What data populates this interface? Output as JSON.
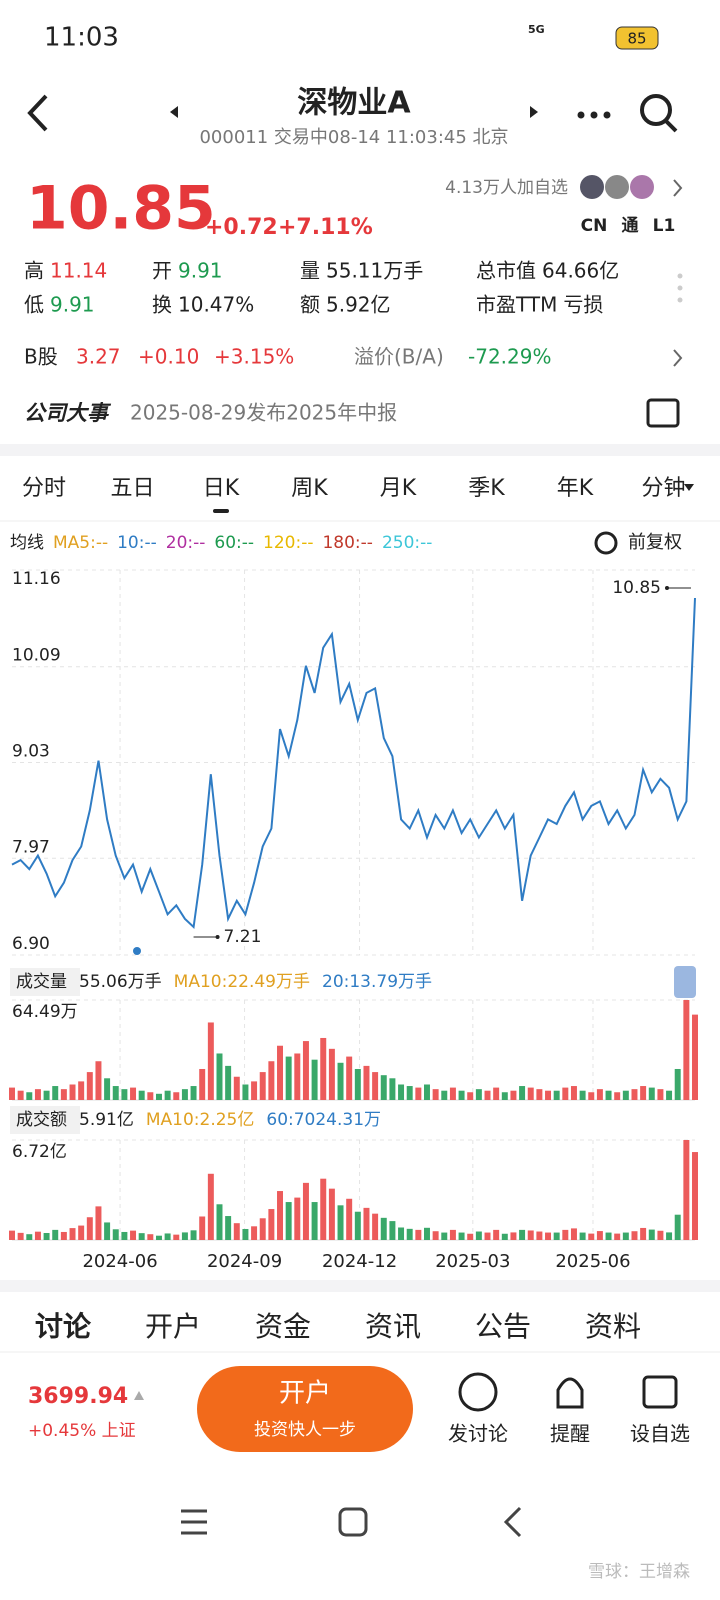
{
  "status_bar": {
    "time": "11:03",
    "network": "5G",
    "battery": "85"
  },
  "header": {
    "title": "深物业A",
    "subtitle": "000011 交易中08-14 11:03:45 北京"
  },
  "quote": {
    "price": "10.85",
    "change": "+0.72",
    "change_pct": "+7.11%",
    "followers": "4.13万人加自选",
    "badges": [
      "CN",
      "通",
      "L1"
    ],
    "stats": [
      [
        {
          "label": "高",
          "value": "11.14"
        },
        {
          "label": "开",
          "value": "9.91"
        },
        {
          "label": "量",
          "value": "55.11万手"
        },
        {
          "label": "总市值",
          "value": "64.66亿"
        }
      ],
      [
        {
          "label": "低",
          "value": "9.91"
        },
        {
          "label": "换",
          "value": "10.47%"
        },
        {
          "label": "额",
          "value": "5.92亿"
        },
        {
          "label": "市盈TTM",
          "value": "亏损"
        }
      ]
    ],
    "b_share": {
      "label": "B股",
      "price": "3.27",
      "change": "+0.10",
      "change_pct": "+3.15%",
      "premium_label": "溢价(B/A)",
      "premium": "-72.29%"
    },
    "event": {
      "label": "公司大事",
      "text": "2025-08-29发布2025年中报"
    }
  },
  "period_tabs": [
    "分时",
    "五日",
    "日K",
    "周K",
    "月K",
    "季K",
    "年K",
    "分钟"
  ],
  "kline": {
    "type": "line",
    "ma_legend": [
      "均线",
      "MA5:--",
      "10:--",
      "20:--",
      "60:--",
      "120:--",
      "180:--",
      "250:--"
    ],
    "adjust": "前复权",
    "price": {
      "color": "#2f7cc4",
      "values": [
        7.9,
        7.95,
        7.85,
        8.0,
        7.8,
        7.55,
        7.7,
        7.95,
        8.1,
        8.5,
        9.05,
        8.4,
        8.0,
        7.75,
        7.9,
        7.6,
        7.85,
        7.6,
        7.35,
        7.45,
        7.3,
        7.21,
        7.9,
        8.9,
        8.0,
        7.3,
        7.5,
        7.35,
        7.7,
        8.1,
        8.3,
        9.4,
        9.1,
        9.5,
        10.1,
        9.8,
        10.3,
        10.45,
        9.7,
        9.9,
        9.5,
        9.8,
        9.85,
        9.3,
        9.1,
        8.4,
        8.3,
        8.5,
        8.2,
        8.45,
        8.3,
        8.5,
        8.25,
        8.4,
        8.2,
        8.35,
        8.5,
        8.3,
        8.45,
        7.5,
        8.0,
        8.2,
        8.4,
        8.35,
        8.55,
        8.7,
        8.4,
        8.55,
        8.6,
        8.35,
        8.5,
        8.3,
        8.45,
        8.95,
        8.7,
        8.85,
        8.75,
        8.4,
        8.6,
        10.85
      ]
    },
    "ylim": [
      6.9,
      11.16
    ],
    "yticks": [
      11.16,
      10.09,
      9.03,
      7.97,
      {
        "value": 6.9,
        "label": "6.90"
      }
    ],
    "high_label": "10.85",
    "low_label": "7.21",
    "xticks": [
      {
        "value": 12.5,
        "label": "2024-06"
      },
      {
        "value": 26.9,
        "label": "2024-09"
      },
      {
        "value": 40.2,
        "label": "2024-12"
      },
      {
        "value": 53.3,
        "label": "2025-03"
      },
      {
        "value": 67.2,
        "label": "2025-06"
      }
    ],
    "volume": {
      "legend": [
        "成交量",
        "55.06万手",
        "MA10:22.49万手",
        "20:13.79万手"
      ],
      "ylim": [
        0,
        64.49
      ],
      "yticks": [
        {
          "value": 64.49,
          "label": "64.49万"
        }
      ],
      "values": [
        8,
        6,
        5,
        7,
        6,
        9,
        7,
        10,
        12,
        18,
        25,
        14,
        9,
        7,
        8,
        6,
        5,
        4,
        6,
        5,
        7,
        9,
        20,
        50,
        30,
        22,
        15,
        10,
        12,
        18,
        25,
        35,
        28,
        30,
        38,
        26,
        40,
        33,
        24,
        28,
        20,
        22,
        18,
        16,
        14,
        10,
        9,
        8,
        10,
        7,
        6,
        8,
        6,
        5,
        7,
        6,
        8,
        5,
        6,
        9,
        8,
        7,
        6,
        6,
        8,
        9,
        6,
        5,
        7,
        6,
        5,
        6,
        7,
        9,
        8,
        7,
        6,
        20,
        64.49,
        55.06
      ]
    },
    "amount": {
      "legend": [
        "成交额",
        "5.91亿",
        "MA10:2.25亿",
        "60:7024.31万"
      ],
      "ylim": [
        0,
        6.72
      ],
      "yticks": [
        {
          "value": 6.72,
          "label": "6.72亿"
        }
      ],
      "values": [
        0.63,
        0.48,
        0.39,
        0.56,
        0.47,
        0.68,
        0.54,
        0.8,
        0.97,
        1.53,
        2.26,
        1.18,
        0.72,
        0.54,
        0.63,
        0.46,
        0.39,
        0.29,
        0.44,
        0.36,
        0.51,
        0.65,
        1.58,
        4.45,
        2.4,
        1.61,
        1.13,
        0.74,
        0.92,
        1.46,
        2.08,
        3.29,
        2.55,
        2.85,
        3.84,
        2.55,
        4.12,
        3.45,
        2.33,
        2.77,
        1.9,
        2.16,
        1.77,
        1.49,
        1.27,
        0.84,
        0.75,
        0.68,
        0.82,
        0.59,
        0.5,
        0.68,
        0.5,
        0.42,
        0.57,
        0.5,
        0.68,
        0.42,
        0.51,
        0.68,
        0.64,
        0.57,
        0.5,
        0.5,
        0.68,
        0.78,
        0.5,
        0.43,
        0.6,
        0.5,
        0.43,
        0.5,
        0.59,
        0.81,
        0.7,
        0.62,
        0.51,
        1.7,
        6.72,
        5.91
      ]
    }
  },
  "content_tabs": [
    "讨论",
    "开户",
    "资金",
    "资讯",
    "公告",
    "资料"
  ],
  "bottom_bar": {
    "index_value": "3699.94",
    "index_change": "+0.45% 上证",
    "open_button": "开户",
    "open_sub": "投资快人一步",
    "actions": [
      "发讨论",
      "提醒",
      "设自选"
    ]
  },
  "watermark": "雪球：王增森"
}
